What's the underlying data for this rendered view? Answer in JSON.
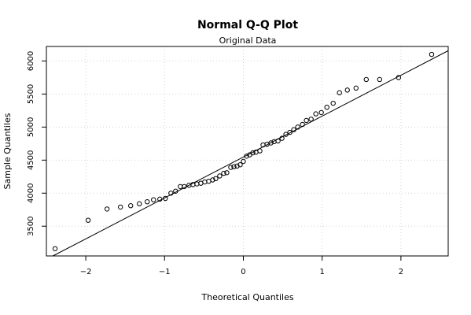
{
  "chart_data": {
    "type": "scatter",
    "title": "Normal Q-Q Plot",
    "subtitle": "Original Data",
    "xlabel": "Theoretical Quantiles",
    "ylabel": "Sample Quantiles",
    "xlim": [
      -2.5,
      2.6
    ],
    "ylim": [
      3050,
      6220
    ],
    "xticks": [
      -2,
      -1,
      0,
      1,
      2
    ],
    "xtick_labels": [
      "−2",
      "−1",
      "0",
      "1",
      "2"
    ],
    "yticks": [
      3500,
      4000,
      4500,
      5000,
      5500,
      6000
    ],
    "ytick_labels": [
      "3500",
      "4000",
      "4500",
      "5000",
      "5500",
      "6000"
    ],
    "grid": true,
    "grid_style": "dotted",
    "marker": "open-circle",
    "reference_line": {
      "x": [
        -2.5,
        2.6
      ],
      "y": [
        2999,
        6156
      ]
    },
    "points": {
      "x": [
        -2.39,
        -1.97,
        -1.73,
        -1.56,
        -1.43,
        -1.32,
        -1.22,
        -1.14,
        -1.06,
        -0.99,
        -0.92,
        -0.86,
        -0.8,
        -0.75,
        -0.69,
        -0.64,
        -0.59,
        -0.54,
        -0.49,
        -0.44,
        -0.39,
        -0.35,
        -0.3,
        -0.25,
        -0.21,
        -0.16,
        -0.12,
        -0.08,
        -0.04,
        0.0,
        0.04,
        0.08,
        0.12,
        0.16,
        0.21,
        0.25,
        0.3,
        0.35,
        0.39,
        0.44,
        0.49,
        0.54,
        0.59,
        0.64,
        0.69,
        0.75,
        0.8,
        0.86,
        0.92,
        0.99,
        1.06,
        1.14,
        1.22,
        1.32,
        1.43,
        1.56,
        1.73,
        1.97,
        2.39
      ],
      "y": [
        3160,
        3590,
        3760,
        3790,
        3810,
        3840,
        3870,
        3900,
        3910,
        3920,
        4000,
        4030,
        4100,
        4100,
        4120,
        4130,
        4140,
        4150,
        4170,
        4180,
        4200,
        4220,
        4260,
        4300,
        4310,
        4390,
        4400,
        4410,
        4430,
        4480,
        4560,
        4580,
        4610,
        4620,
        4640,
        4730,
        4740,
        4760,
        4780,
        4790,
        4830,
        4890,
        4920,
        4960,
        5000,
        5040,
        5100,
        5120,
        5200,
        5220,
        5300,
        5360,
        5520,
        5560,
        5590,
        5720,
        5720,
        5750,
        6100
      ]
    }
  }
}
